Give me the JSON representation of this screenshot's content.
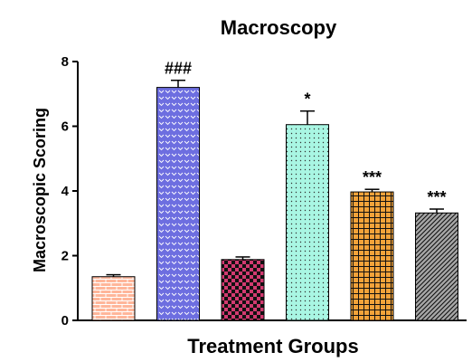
{
  "chart_data": {
    "type": "bar",
    "title": "Macroscopy",
    "xlabel": "Treatment Groups",
    "ylabel": "Macroscopic Scoring",
    "ylim": [
      0,
      8
    ],
    "yticks": [
      "0",
      "2",
      "4",
      "6",
      "8"
    ],
    "grid": false,
    "legend": "none",
    "bars": [
      {
        "value": 1.35,
        "error": 0.06,
        "annotation": "",
        "fill": "#ffb69a",
        "pattern": "brick"
      },
      {
        "value": 7.2,
        "error": 0.22,
        "annotation": "###",
        "fill": "#6d6ee0",
        "pattern": "chevron"
      },
      {
        "value": 1.88,
        "error": 0.08,
        "annotation": "",
        "fill": "#d23a70",
        "pattern": "checker"
      },
      {
        "value": 6.05,
        "error": 0.42,
        "annotation": "*",
        "fill": "#a9f6e3",
        "pattern": "dots"
      },
      {
        "value": 3.97,
        "error": 0.08,
        "annotation": "***",
        "fill": "#f3a33a",
        "pattern": "grid"
      },
      {
        "value": 3.32,
        "error": 0.12,
        "annotation": "***",
        "fill": "#a7a7a7",
        "pattern": "diagonal"
      }
    ]
  }
}
